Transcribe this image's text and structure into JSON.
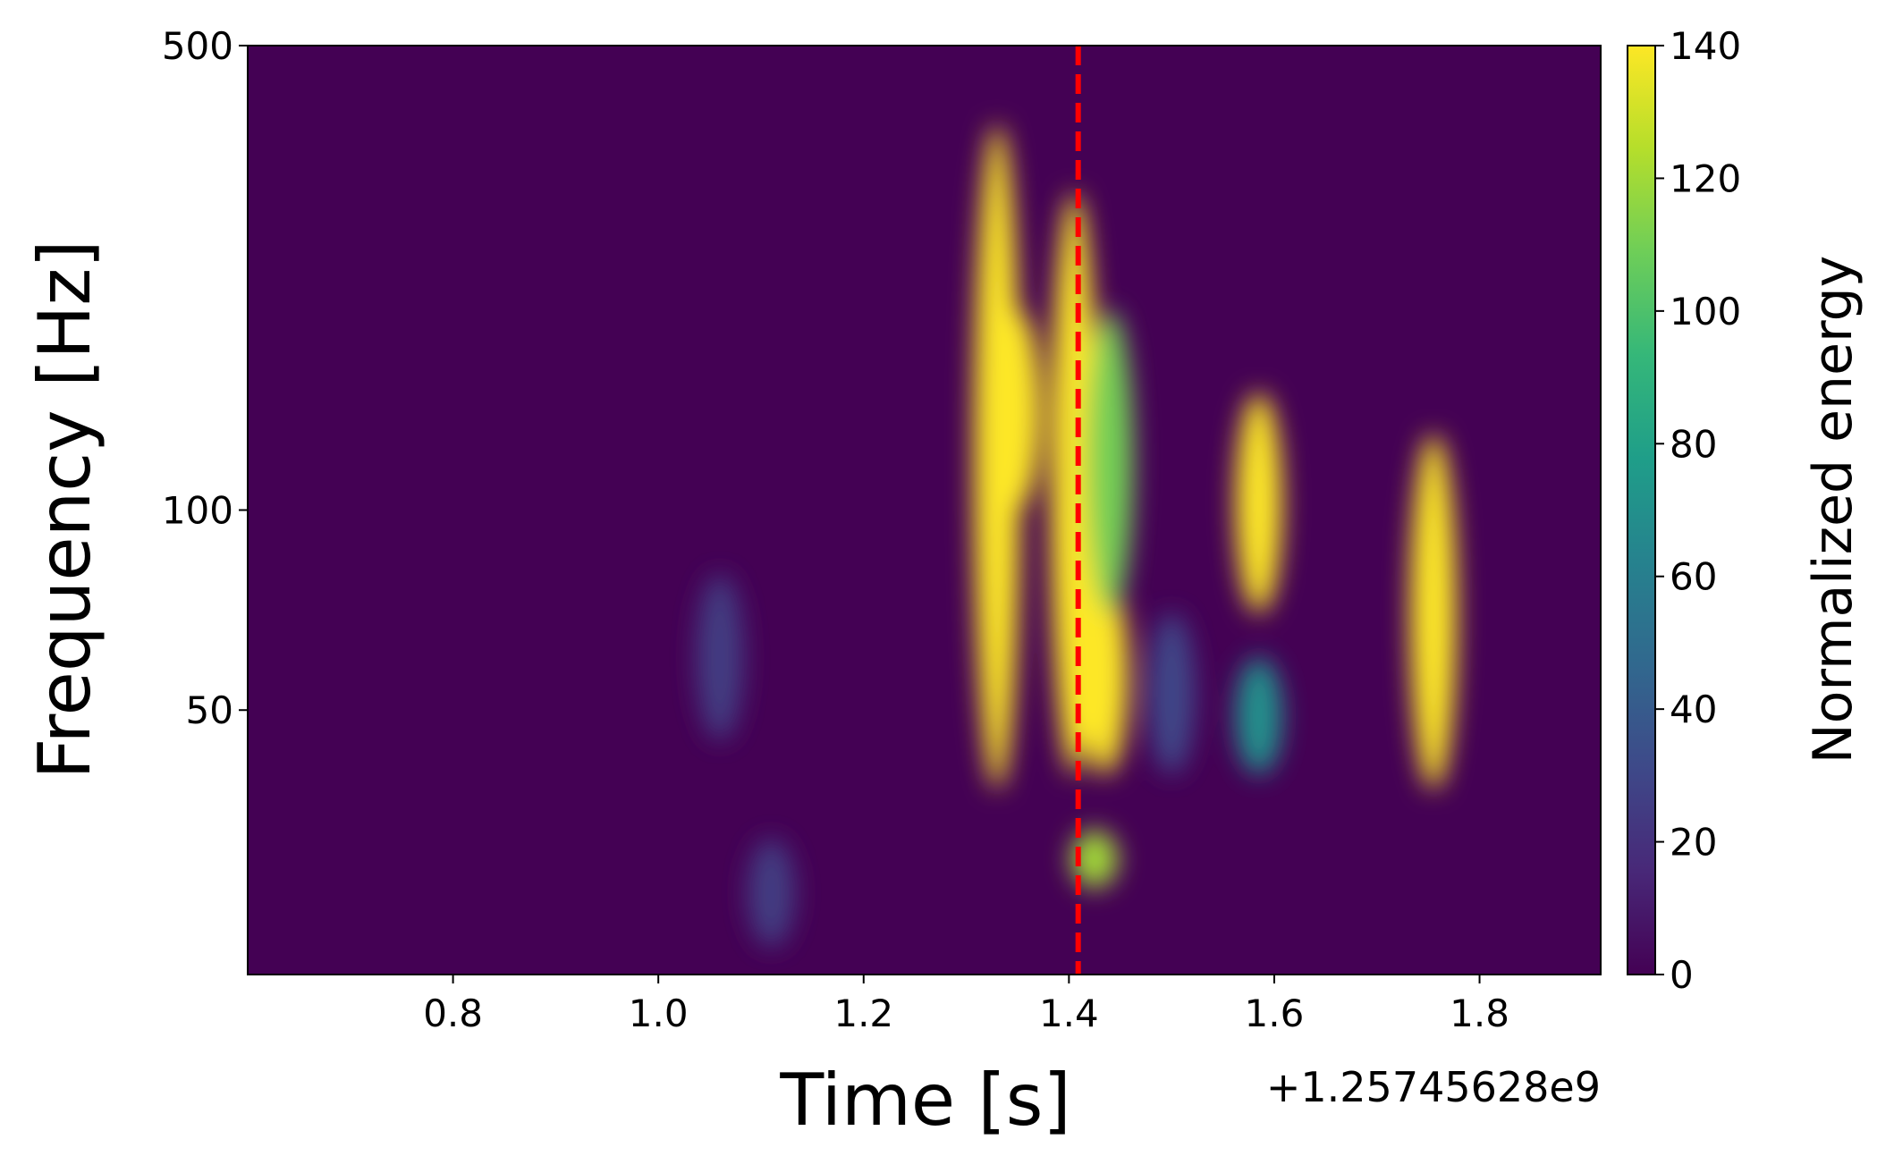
{
  "chart_data": {
    "type": "heatmap",
    "x_label": "Time [s]",
    "y_label": "Frequency [Hz]",
    "x_offset_label": "+1.25745628e9",
    "colorbar_label": "Normalized energy",
    "colormap": "viridis",
    "xlim": [
      0.6,
      1.918
    ],
    "xticks": [
      0.8,
      {
        "value": 1,
        "label": "1.0"
      },
      1.2,
      1.4,
      1.6,
      1.8
    ],
    "ylim": [
      20,
      500
    ],
    "yticks": [
      50,
      100,
      500
    ],
    "y_log": true,
    "clim": [
      0,
      140
    ],
    "cticks": [
      0,
      20,
      40,
      60,
      80,
      100,
      120,
      140
    ],
    "marker_line": {
      "x": 1.409,
      "color": "#ff0000"
    },
    "hotspots": [
      {
        "time": 1.33,
        "freq_low": 38,
        "freq_high": 380,
        "energy": 140
      },
      {
        "time": 1.35,
        "freq_low": 100,
        "freq_high": 200,
        "energy": 140
      },
      {
        "time": 1.405,
        "freq_low": 40,
        "freq_high": 300,
        "energy": 140
      },
      {
        "time": 1.435,
        "freq_low": 40,
        "freq_high": 80,
        "energy": 140
      },
      {
        "time": 1.44,
        "freq_low": 70,
        "freq_high": 200,
        "energy": 110
      },
      {
        "time": 1.425,
        "freq_low": 27,
        "freq_high": 33,
        "energy": 120
      },
      {
        "time": 1.585,
        "freq_low": 70,
        "freq_high": 150,
        "energy": 140
      },
      {
        "time": 1.585,
        "freq_low": 40,
        "freq_high": 60,
        "energy": 70
      },
      {
        "time": 1.755,
        "freq_low": 38,
        "freq_high": 130,
        "energy": 140
      },
      {
        "time": 1.11,
        "freq_low": 22,
        "freq_high": 32,
        "energy": 25
      },
      {
        "time": 1.06,
        "freq_low": 45,
        "freq_high": 80,
        "energy": 25
      },
      {
        "time": 1.5,
        "freq_low": 40,
        "freq_high": 70,
        "energy": 30
      }
    ]
  }
}
